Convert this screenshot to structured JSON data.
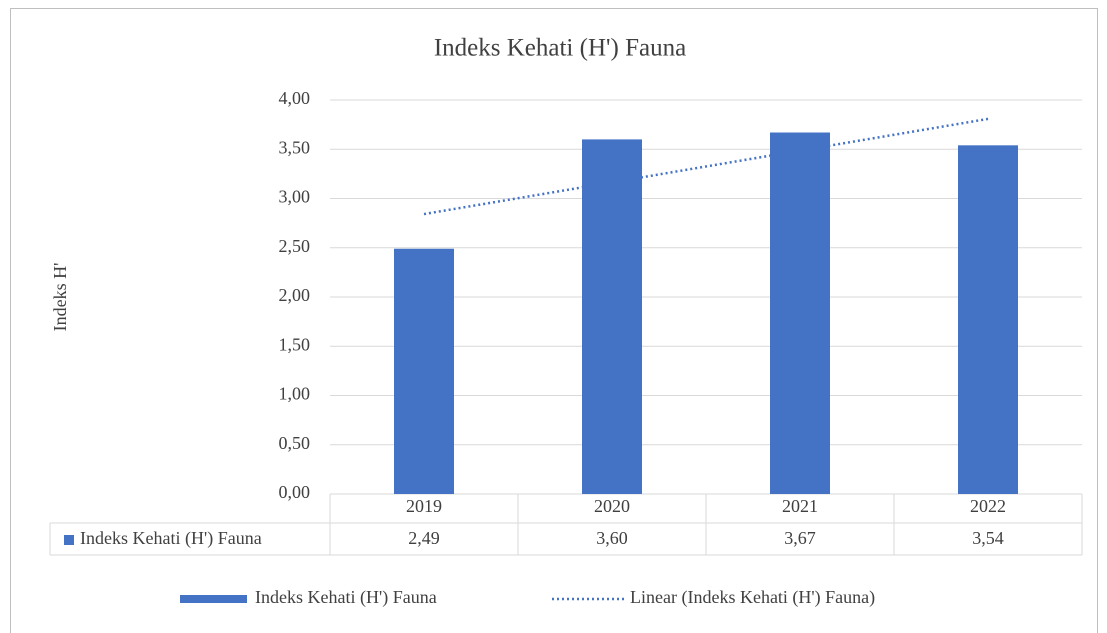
{
  "chart_data": {
    "type": "bar",
    "title": "Indeks Kehati (H') Fauna",
    "y_label": "Indeks H'",
    "categories": [
      "2019",
      "2020",
      "2021",
      "2022"
    ],
    "series": [
      {
        "name": "Indeks Kehati (H') Fauna",
        "color": "#4472c4",
        "values": [
          2.49,
          3.6,
          3.67,
          3.54
        ],
        "value_labels": [
          "2,49",
          "3,60",
          "3,67",
          "3,54"
        ]
      }
    ],
    "trendline": {
      "name": "Linear (Indeks Kehati (H') Fauna)",
      "kind": "linear",
      "color": "#4472c4"
    },
    "ylim": [
      0,
      4
    ],
    "yticks": [
      {
        "value": 0,
        "label": "0,00"
      },
      {
        "value": 0.5,
        "label": "0,50"
      },
      {
        "value": 1,
        "label": "1,00"
      },
      {
        "value": 1.5,
        "label": "1,50"
      },
      {
        "value": 2,
        "label": "2,00"
      },
      {
        "value": 2.5,
        "label": "2,50"
      },
      {
        "value": 3,
        "label": "3,00"
      },
      {
        "value": 3.5,
        "label": "3,50"
      },
      {
        "value": 4,
        "label": "4,00"
      }
    ],
    "grid": true,
    "data_table": true,
    "legend": "bottom"
  }
}
